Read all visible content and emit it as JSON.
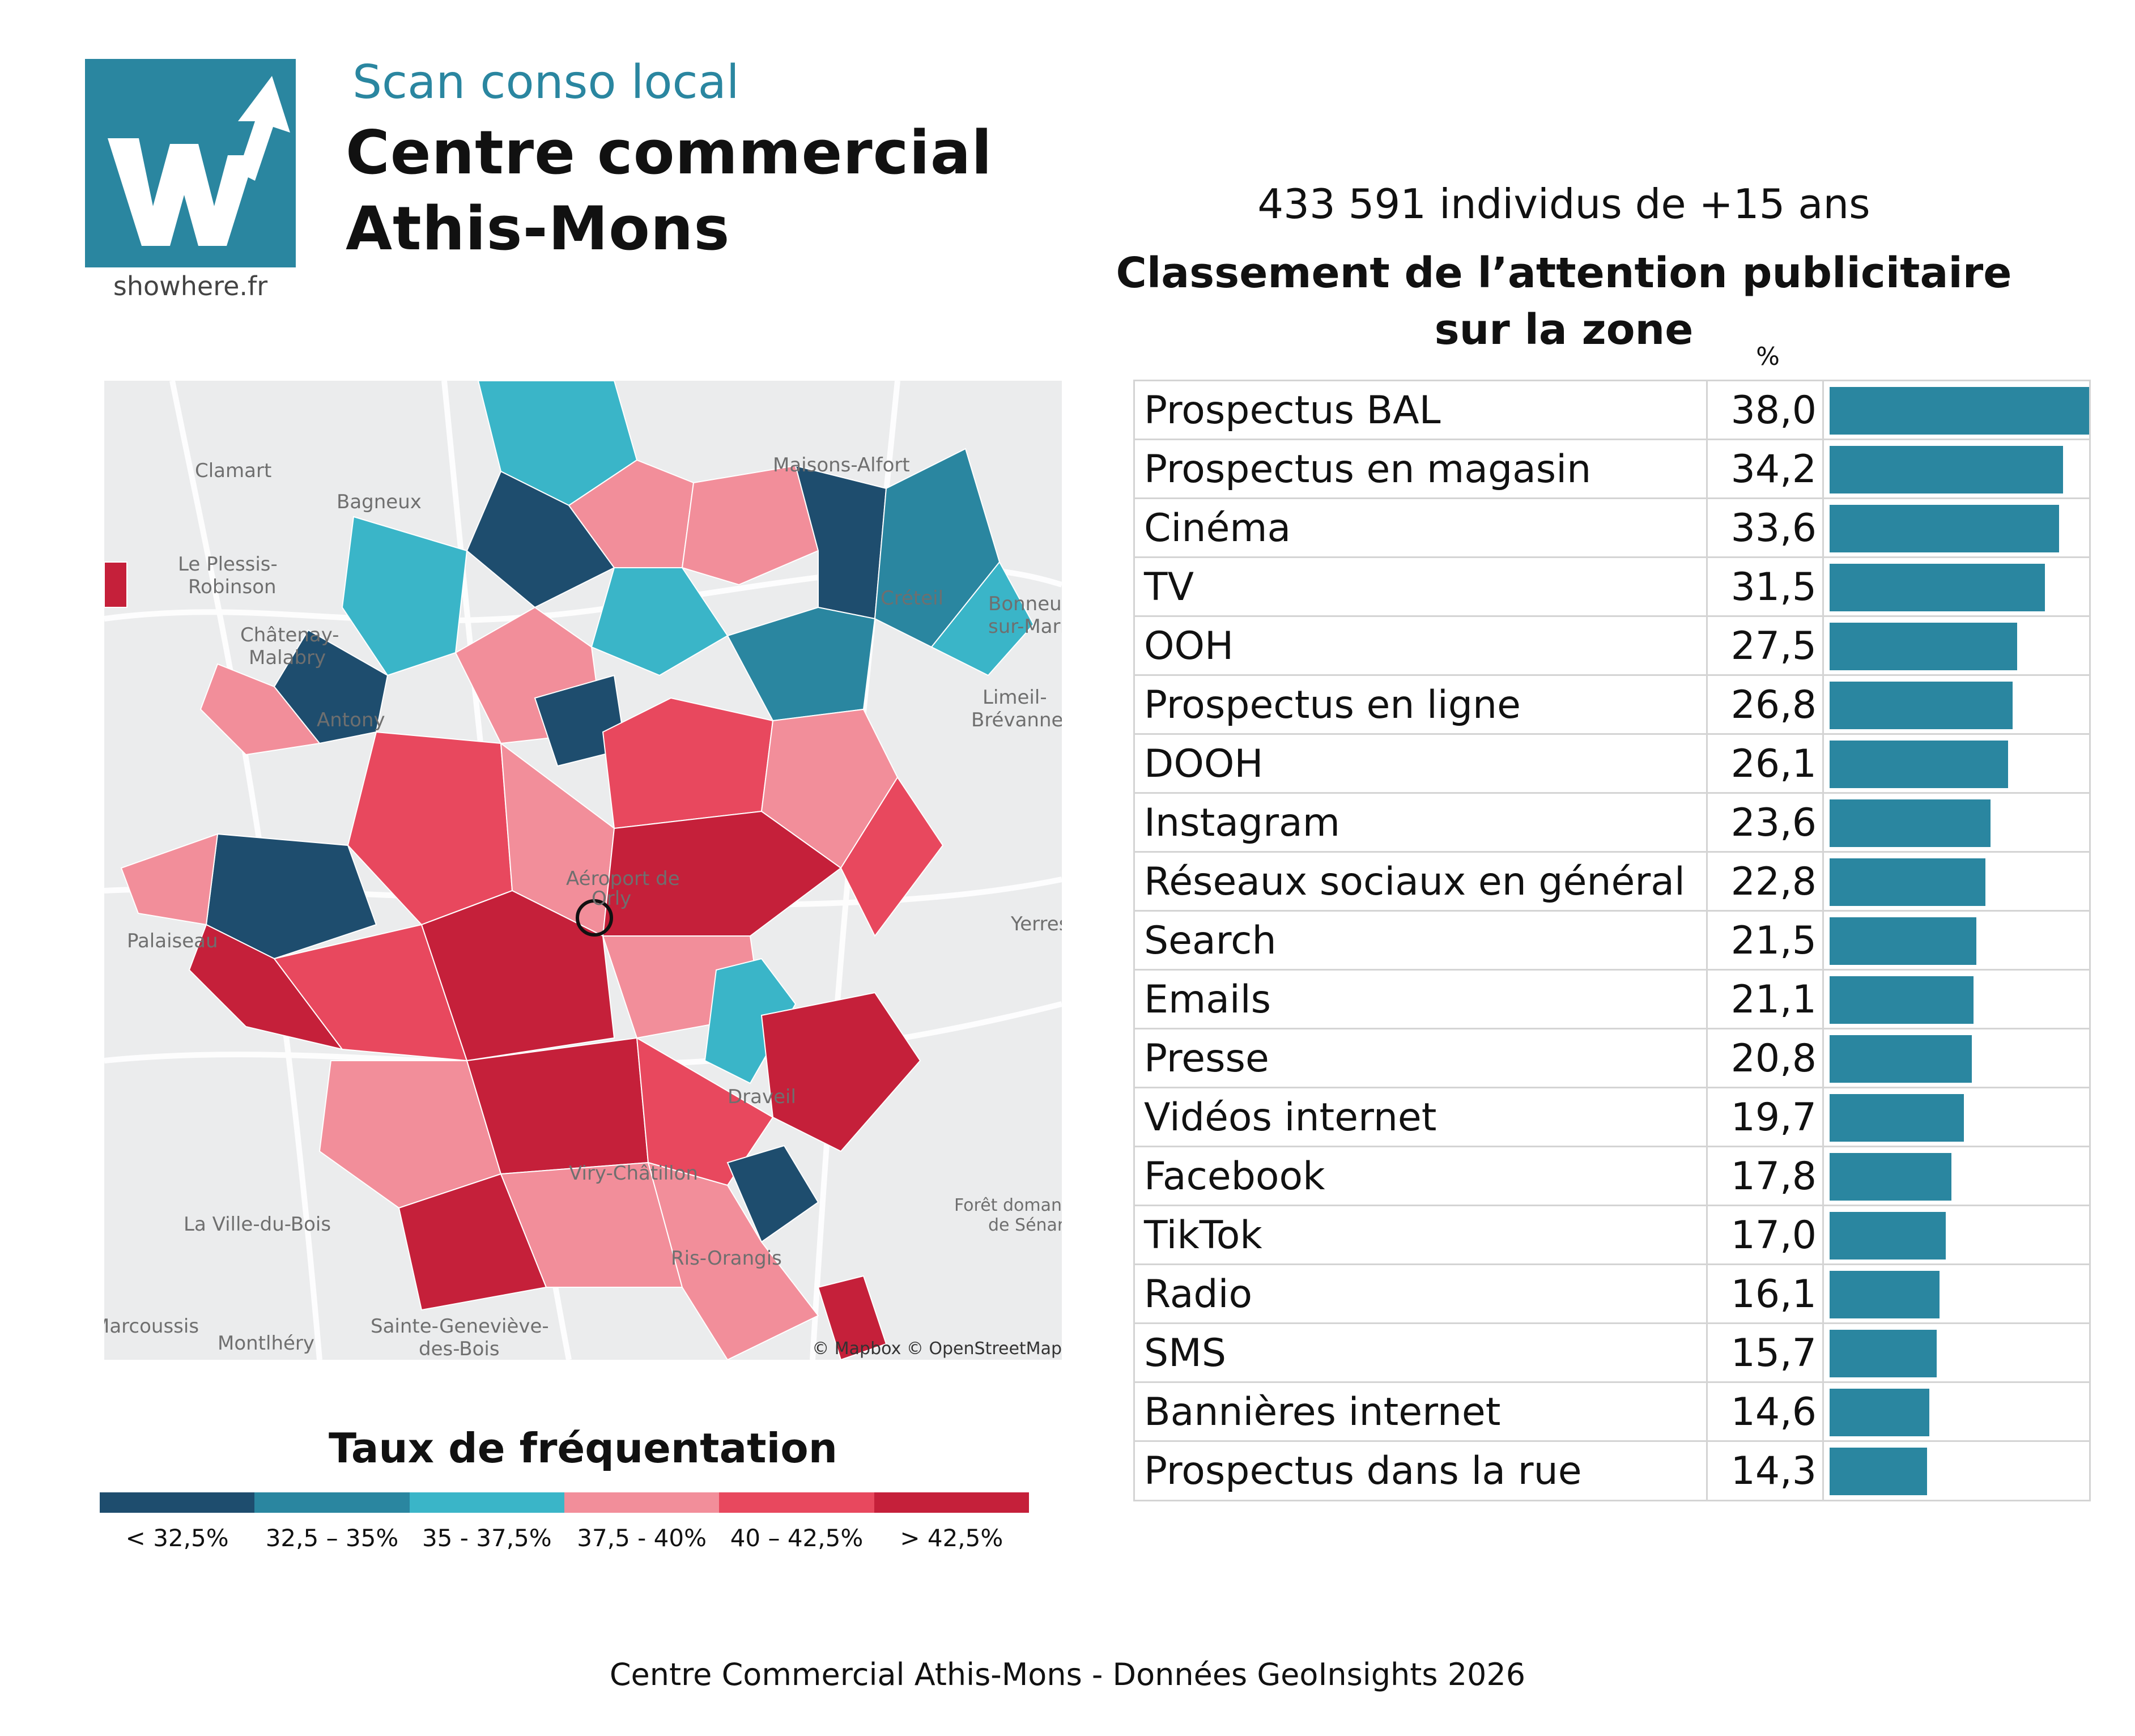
{
  "header": {
    "logo_site": "showhere.fr",
    "scan_label": "Scan conso local",
    "title_line1": "Centre commercial",
    "title_line2": "Athis-Mons"
  },
  "ranking": {
    "population": "433 591 individus de +15 ans",
    "title": "Classement de l’attention publicitaire sur la zone",
    "unit": "%"
  },
  "map": {
    "labels": {
      "clamart": "Clamart",
      "bagneux": "Bagneux",
      "le_plessis": "Le Plessis-",
      "robinson": "Robinson",
      "chatenay": "Châtenay-",
      "malabry": "Malabry",
      "antony": "Antony",
      "maisons_alfort": "Maisons-Alfort",
      "creteil": "Créteil",
      "bonneuil": "Bonneuil-",
      "sur_marne": "sur-Marne",
      "limeil": "Limeil-",
      "brevannes": "Brévannes",
      "palaiseau": "Palaiseau",
      "yerres": "Yerres",
      "aeroport": "Aéroport de",
      "orly": "Orly",
      "draveil": "Draveil",
      "viry": "Viry-Châtillon",
      "la_ville_du_bois": "La Ville-du-Bois",
      "foret1": "Forêt domaniale",
      "foret2": "de Sénart",
      "marcoussis": "Marcoussis",
      "montlhery": "Montlhéry",
      "sainte_genevieve1": "Sainte-Geneviève-",
      "sainte_genevieve2": "des-Bois",
      "ris_orangis": "Ris-Orangis",
      "attribution": "© Mapbox © OpenStreetMap"
    }
  },
  "legend": {
    "title": "Taux de fréquentation",
    "items": [
      {
        "label": "< 32,5%",
        "color": "#1e4d6e"
      },
      {
        "label": "32,5 – 35%",
        "color": "#2a86a0"
      },
      {
        "label": "35 - 37,5%",
        "color": "#3ab5c8"
      },
      {
        "label": "37,5 - 40%",
        "color": "#f28e9a"
      },
      {
        "label": "40 – 42,5%",
        "color": "#e8485e"
      },
      {
        "label": "> 42,5%",
        "color": "#c5203a"
      }
    ]
  },
  "chart_data": {
    "type": "bar",
    "orientation": "horizontal",
    "unit": "%",
    "categories": [
      "Prospectus BAL",
      "Prospectus en magasin",
      "Cinéma",
      "TV",
      "OOH",
      "Prospectus en ligne",
      "DOOH",
      "Instagram",
      "Réseaux sociaux en général",
      "Search",
      "Emails",
      "Presse",
      "Vidéos internet",
      "Facebook",
      "TikTok",
      "Radio",
      "SMS",
      "Bannières internet",
      "Prospectus dans la rue"
    ],
    "values": [
      38.0,
      34.2,
      33.6,
      31.5,
      27.5,
      26.8,
      26.1,
      23.6,
      22.8,
      21.5,
      21.1,
      20.8,
      19.7,
      17.8,
      17.0,
      16.1,
      15.7,
      14.6,
      14.3
    ],
    "value_labels": [
      "38,0",
      "34,2",
      "33,6",
      "31,5",
      "27,5",
      "26,8",
      "26,1",
      "23,6",
      "22,8",
      "21,5",
      "21,1",
      "20,8",
      "19,7",
      "17,8",
      "17,0",
      "16,1",
      "15,7",
      "14,6",
      "14,3"
    ],
    "bar_color": "#2a86a0",
    "xlim": [
      0,
      38.0
    ]
  },
  "footer": "Centre Commercial Athis-Mons - Données GeoInsights 2026"
}
